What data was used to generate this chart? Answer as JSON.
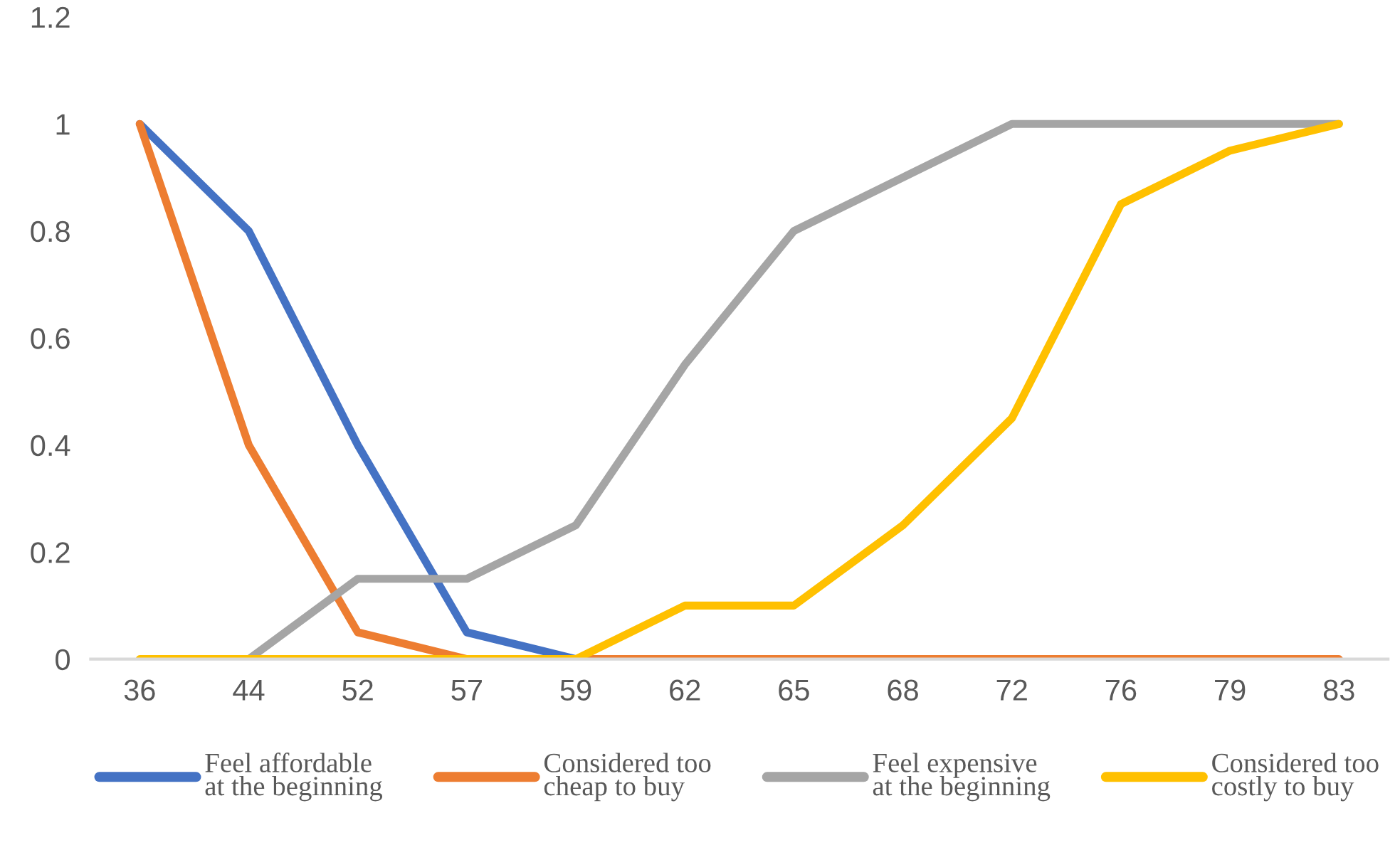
{
  "chart_data": {
    "type": "line",
    "categories": [
      "36",
      "44",
      "52",
      "57",
      "59",
      "62",
      "65",
      "68",
      "72",
      "76",
      "79",
      "83"
    ],
    "series": [
      {
        "name": "Feel affordable\nat the beginning",
        "color": "#4472c4",
        "values": [
          1,
          0.8,
          0.4,
          0.05,
          0,
          null,
          null,
          null,
          null,
          null,
          null,
          null
        ]
      },
      {
        "name": "Considered too\ncheap to buy",
        "color": "#ed7d31",
        "values": [
          1,
          0.4,
          0.05,
          0,
          0,
          0,
          0,
          0,
          0,
          0,
          0,
          0
        ]
      },
      {
        "name": "Feel expensive\nat the beginning",
        "color": "#a5a5a5",
        "values": [
          null,
          0,
          0.15,
          0.15,
          0.25,
          0.55,
          0.8,
          0.9,
          1,
          1,
          1,
          1
        ]
      },
      {
        "name": "Considered too\ncostly to buy",
        "color": "#ffc000",
        "values": [
          0,
          0,
          0,
          0,
          0,
          0.1,
          0.1,
          0.25,
          0.45,
          0.85,
          0.95,
          1
        ]
      }
    ],
    "ylim": [
      0,
      1.2
    ],
    "yticks": [
      0,
      0.2,
      0.4,
      0.6,
      0.8,
      1,
      1.2
    ],
    "grid": false,
    "legend": "bottom",
    "marker": "none",
    "line_style": "solid"
  }
}
